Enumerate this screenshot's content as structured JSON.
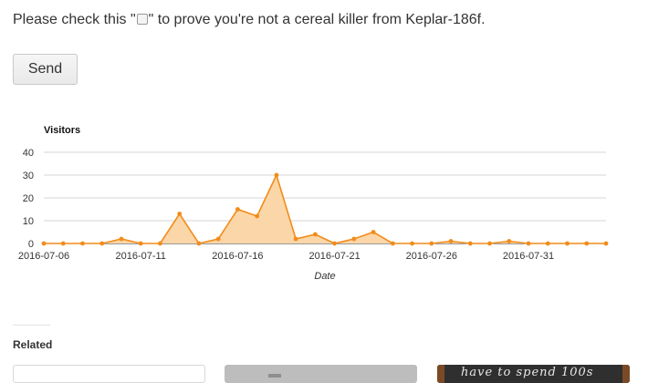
{
  "captcha": {
    "before": "Please check this \"",
    "after": "\" to prove you're not a cereal killer from Keplar-186f."
  },
  "form": {
    "send_label": "Send"
  },
  "chart_data": {
    "type": "area",
    "title": "Visitors",
    "xlabel": "Date",
    "ylabel": "",
    "ylim": [
      0,
      40
    ],
    "yticks": [
      0,
      10,
      20,
      30,
      40
    ],
    "xtick_labels": [
      "2016-07-06",
      "2016-07-11",
      "2016-07-16",
      "2016-07-21",
      "2016-07-26",
      "2016-07-31"
    ],
    "x": [
      "2016-07-06",
      "2016-07-07",
      "2016-07-08",
      "2016-07-09",
      "2016-07-10",
      "2016-07-11",
      "2016-07-12",
      "2016-07-13",
      "2016-07-14",
      "2016-07-15",
      "2016-07-16",
      "2016-07-17",
      "2016-07-18",
      "2016-07-19",
      "2016-07-20",
      "2016-07-21",
      "2016-07-22",
      "2016-07-23",
      "2016-07-24",
      "2016-07-25",
      "2016-07-26",
      "2016-07-27",
      "2016-07-28",
      "2016-07-29",
      "2016-07-30",
      "2016-07-31",
      "2016-08-01",
      "2016-08-02",
      "2016-08-03",
      "2016-08-04"
    ],
    "series": [
      {
        "values": [
          0,
          0,
          0,
          0,
          2,
          0,
          0,
          13,
          0,
          2,
          15,
          12,
          30,
          2,
          4,
          0,
          2,
          5,
          0,
          0,
          0,
          1,
          0,
          0,
          1,
          0,
          0,
          0,
          0,
          0
        ]
      }
    ],
    "grid": true,
    "line_color": "#f28c1a",
    "fill_color": "#fbd6a8"
  },
  "related": {
    "label": "Related",
    "card3_text": "have to spend 100s"
  }
}
